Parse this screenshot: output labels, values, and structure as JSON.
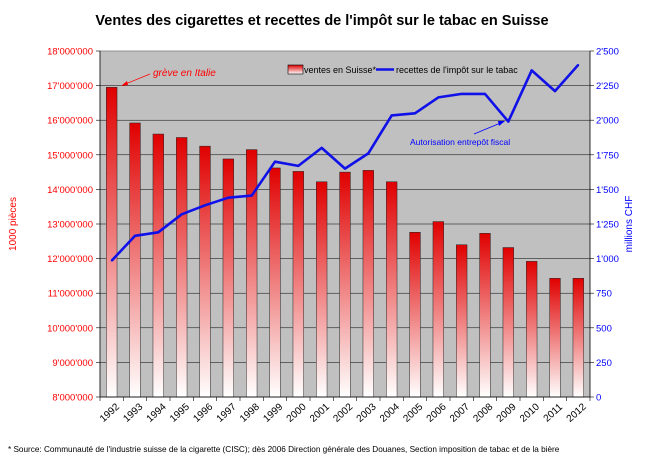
{
  "chart_data": {
    "type": "bar",
    "title": "Ventes des cigarettes et recettes de l'impôt sur le tabac en Suisse",
    "ylabel_left": "1000 pièces",
    "ylabel_right": "millions CHF",
    "categories": [
      "1992",
      "1993",
      "1994",
      "1995",
      "1996",
      "1997",
      "1998",
      "1999",
      "2000",
      "2001",
      "2002",
      "2003",
      "2004",
      "2005",
      "2006",
      "2007",
      "2008",
      "2009",
      "2010",
      "2011",
      "2012"
    ],
    "y_left": {
      "min": 8000000,
      "max": 18000000,
      "step": 1000000,
      "tick_labels": [
        "8'000'000",
        "9'000'000",
        "10'000'000",
        "11'000'000",
        "12'000'000",
        "13'000'000",
        "14'000'000",
        "15'000'000",
        "16'000'000",
        "17'000'000",
        "18'000'000"
      ]
    },
    "y_right": {
      "min": 0,
      "max": 2500,
      "step": 250,
      "tick_labels": [
        "0",
        "250",
        "500",
        "750",
        "1'000",
        "1'250",
        "1'500",
        "1'750",
        "2'000",
        "2'250",
        "2'500"
      ]
    },
    "series": [
      {
        "name": "ventes en Suisse*",
        "type": "bar",
        "axis": "left",
        "values": [
          16950000,
          15920000,
          15600000,
          15500000,
          15250000,
          14880000,
          15150000,
          14620000,
          14520000,
          14220000,
          14500000,
          14550000,
          14220000,
          12760000,
          13070000,
          12400000,
          12730000,
          12320000,
          11920000,
          11430000,
          11430000
        ]
      },
      {
        "name": "recettes de l'impôt sur le tabac",
        "type": "line",
        "axis": "right",
        "values": [
          985,
          1165,
          1190,
          1320,
          1385,
          1440,
          1455,
          1700,
          1670,
          1800,
          1650,
          1760,
          2035,
          2050,
          2165,
          2190,
          2190,
          1990,
          2360,
          2210,
          2400
        ]
      }
    ],
    "annotations": [
      {
        "text": "grève en Italie",
        "category": "1992"
      },
      {
        "text": "Autorisation entrepôt fiscal",
        "category": "2009"
      }
    ],
    "legend": "top-right",
    "grid": true,
    "colors": {
      "plot_bg": "#c0c0c0",
      "bar_top": "#e00000",
      "bar_bottom": "#ffffff",
      "line": "#1010e8",
      "left_axis_text": "#ff0000",
      "right_axis_text": "#0000ff",
      "annotation_left": "#ff0000",
      "annotation_right": "#0000ff"
    }
  },
  "footnote": "* Source: Communauté de l'industrie suisse de la cigarette (CISC); dès 2006 Direction générale des Douanes, Section imposition de tabac et de la bière"
}
